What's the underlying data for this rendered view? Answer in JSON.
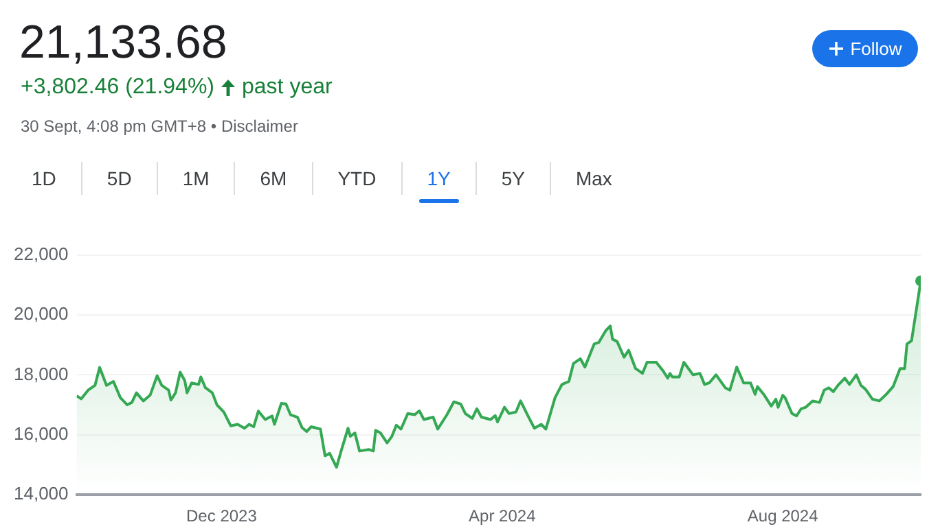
{
  "chart_data": {
    "type": "area",
    "title": "21,133.68",
    "subtitle": "+3,802.46 (21.94%)",
    "annotations": [
      "past year",
      "30 Sept, 4:08 pm GMT+8 • Disclaimer",
      "Follow",
      "1D",
      "5D",
      "1M",
      "6M",
      "YTD",
      "1Y",
      "5Y",
      "Max"
    ],
    "x": [
      "2023-09-29",
      "2023-10-01",
      "2023-10-04",
      "2023-10-07",
      "2023-10-09",
      "2023-10-12",
      "2023-10-15",
      "2023-10-18",
      "2023-10-21",
      "2023-10-23",
      "2023-10-25",
      "2023-10-28",
      "2023-10-31",
      "2023-11-03",
      "2023-11-05",
      "2023-11-08",
      "2023-11-09",
      "2023-11-11",
      "2023-11-13",
      "2023-11-15",
      "2023-11-16",
      "2023-11-18",
      "2023-11-21",
      "2023-11-22",
      "2023-11-24",
      "2023-11-27",
      "2023-11-29",
      "2023-12-02",
      "2023-12-05",
      "2023-12-08",
      "2023-12-11",
      "2023-12-13",
      "2023-12-15",
      "2023-12-17",
      "2023-12-20",
      "2023-12-23",
      "2023-12-24",
      "2023-12-27",
      "2023-12-29",
      "2023-12-31",
      "2024-01-03",
      "2024-01-05",
      "2024-01-07",
      "2024-01-09",
      "2024-01-13",
      "2024-01-15",
      "2024-01-17",
      "2024-01-20",
      "2024-01-22",
      "2024-01-25",
      "2024-01-26",
      "2024-01-28",
      "2024-01-30",
      "2024-02-03",
      "2024-02-05",
      "2024-02-06",
      "2024-02-08",
      "2024-02-11",
      "2024-02-13",
      "2024-02-15",
      "2024-02-17",
      "2024-02-20",
      "2024-02-23",
      "2024-02-25",
      "2024-02-27",
      "2024-03-02",
      "2024-03-04",
      "2024-03-06",
      "2024-03-08",
      "2024-03-11",
      "2024-03-14",
      "2024-03-16",
      "2024-03-19",
      "2024-03-21",
      "2024-03-23",
      "2024-03-27",
      "2024-03-29",
      "2024-03-30",
      "2024-04-02",
      "2024-04-04",
      "2024-04-07",
      "2024-04-09",
      "2024-04-12",
      "2024-04-15",
      "2024-04-18",
      "2024-04-20",
      "2024-04-24",
      "2024-04-27",
      "2024-04-30",
      "2024-05-02",
      "2024-05-05",
      "2024-05-07",
      "2024-05-11",
      "2024-05-13",
      "2024-05-16",
      "2024-05-18",
      "2024-05-19",
      "2024-05-21",
      "2024-05-24",
      "2024-05-26",
      "2024-05-29",
      "2024-06-01",
      "2024-06-03",
      "2024-06-07",
      "2024-06-10",
      "2024-06-12",
      "2024-06-13",
      "2024-06-14",
      "2024-06-17",
      "2024-06-19",
      "2024-06-21",
      "2024-06-23",
      "2024-06-26",
      "2024-06-28",
      "2024-06-30",
      "2024-07-03",
      "2024-07-07",
      "2024-07-09",
      "2024-07-12",
      "2024-07-15",
      "2024-07-18",
      "2024-07-20",
      "2024-07-21",
      "2024-07-24",
      "2024-07-27",
      "2024-07-29",
      "2024-07-30",
      "2024-08-01",
      "2024-08-02",
      "2024-08-05",
      "2024-08-07",
      "2024-08-09",
      "2024-08-11",
      "2024-08-14",
      "2024-08-17",
      "2024-08-19",
      "2024-08-21",
      "2024-08-23",
      "2024-08-25",
      "2024-08-28",
      "2024-08-30",
      "2024-09-02",
      "2024-09-04",
      "2024-09-06",
      "2024-09-09",
      "2024-09-12",
      "2024-09-15",
      "2024-09-18",
      "2024-09-21",
      "2024-09-23",
      "2024-09-24",
      "2024-09-26",
      "2024-09-30"
    ],
    "series": [
      {
        "color": "#34a853",
        "values": [
          17300,
          17200,
          17490,
          17650,
          18250,
          17650,
          17780,
          17240,
          17000,
          17080,
          17400,
          17130,
          17330,
          17970,
          17650,
          17490,
          17160,
          17400,
          18090,
          17810,
          17400,
          17730,
          17680,
          17930,
          17570,
          17400,
          17000,
          16760,
          16300,
          16350,
          16220,
          16350,
          16270,
          16790,
          16510,
          16630,
          16350,
          17050,
          17030,
          16670,
          16590,
          16240,
          16110,
          16270,
          16190,
          15300,
          15380,
          14920,
          15460,
          16220,
          15950,
          16060,
          15460,
          15510,
          15460,
          16150,
          16070,
          15730,
          15940,
          16320,
          16190,
          16710,
          16670,
          16800,
          16510,
          16590,
          16190,
          16430,
          16670,
          17100,
          17030,
          16710,
          16550,
          16870,
          16590,
          16510,
          16640,
          16430,
          16920,
          16710,
          16760,
          17130,
          16670,
          16220,
          16350,
          16190,
          17240,
          17680,
          17780,
          18380,
          18540,
          18260,
          19030,
          19080,
          19470,
          19630,
          19190,
          19110,
          18590,
          18820,
          18210,
          18050,
          18420,
          18420,
          18130,
          17890,
          18050,
          17930,
          17930,
          18420,
          18210,
          18000,
          18050,
          17680,
          17730,
          18000,
          17570,
          17490,
          18260,
          17730,
          17730,
          17350,
          17610,
          17320,
          16960,
          17190,
          16920,
          17320,
          17240,
          16710,
          16630,
          16870,
          16920,
          17130,
          17080,
          17490,
          17570,
          17440,
          17650,
          17890,
          17680,
          18000,
          17650,
          17520,
          17190,
          17130,
          17350,
          17610,
          18210,
          18210,
          19030,
          19140,
          21133.68
        ]
      }
    ],
    "xlim": [
      "2023-09-29",
      "2024-09-30"
    ],
    "xticks": [
      {
        "value": "2023-12-01",
        "label": "Dec 2023"
      },
      {
        "value": "2024-04-01",
        "label": "Apr 2024"
      },
      {
        "value": "2024-08-01",
        "label": "Aug 2024"
      }
    ],
    "ylim": [
      14000,
      22000
    ],
    "yticks": [
      {
        "value": 14000,
        "label": "14,000"
      },
      {
        "value": 16000,
        "label": "16,000"
      },
      {
        "value": 18000,
        "label": "18,000"
      },
      {
        "value": 20000,
        "label": "20,000"
      },
      {
        "value": 22000,
        "label": "22,000"
      }
    ],
    "grid": "y",
    "legend": false
  }
}
